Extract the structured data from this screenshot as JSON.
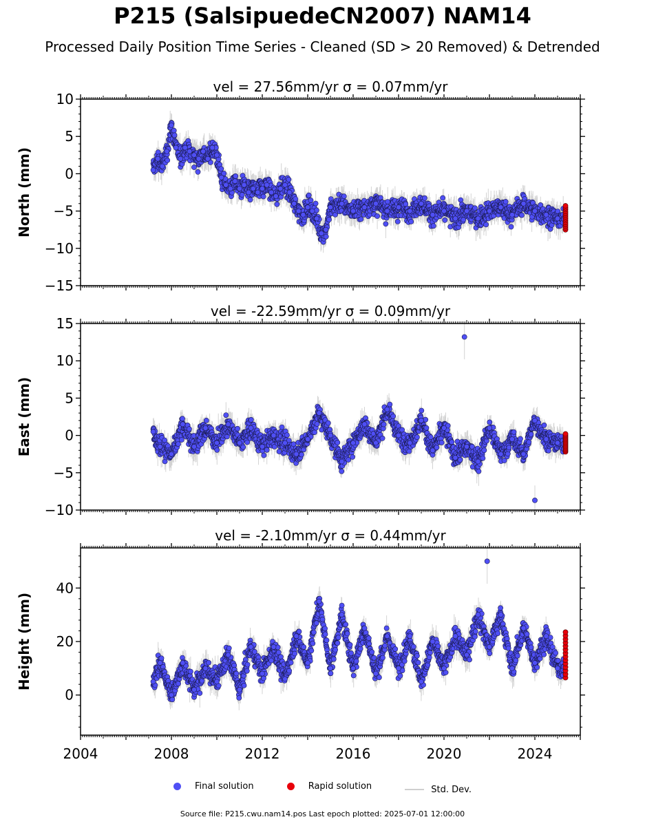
{
  "title": "P215 (SalsipuedeCN2007) NAM14",
  "subtitle": "Processed Daily Position Time Series - Cleaned (SD > 20 Removed) & Detrended",
  "legend": {
    "final": "Final solution",
    "rapid": "Rapid solution",
    "std": "Std. Dev."
  },
  "footer": "Source file: P215.cwu.nam14.pos  Last epoch plotted: 2025-07-01 12:00:00",
  "colors": {
    "final": "#4f4ff5",
    "rapid": "#e8000b",
    "std": "#b0b0b0"
  },
  "chart_data": [
    {
      "type": "scatter",
      "title": "vel = 27.56mm/yr   σ = 0.07mm/yr",
      "ylabel": "North (mm)",
      "xlim": [
        2004,
        2026
      ],
      "ylim": [
        -15,
        10
      ],
      "yticks": [
        -15,
        -10,
        -5,
        0,
        5,
        10
      ],
      "xticks": [
        2004,
        2008,
        2012,
        2016,
        2020,
        2024
      ],
      "series": [
        {
          "name": "Final solution",
          "x": [
            2007.2,
            2007.4,
            2007.6,
            2007.8,
            2008.0,
            2008.2,
            2008.4,
            2008.6,
            2008.8,
            2009.0,
            2009.2,
            2009.4,
            2009.6,
            2009.8,
            2010.0,
            2010.2,
            2010.4,
            2010.6,
            2010.8,
            2011.0,
            2011.2,
            2011.4,
            2011.6,
            2011.8,
            2012.0,
            2012.2,
            2012.4,
            2012.6,
            2012.8,
            2013.0,
            2013.2,
            2013.4,
            2013.6,
            2013.8,
            2014.0,
            2014.2,
            2014.4,
            2014.6,
            2014.8,
            2015.0,
            2015.5,
            2016.0,
            2016.5,
            2017.0,
            2017.5,
            2018.0,
            2018.5,
            2019.0,
            2019.5,
            2020.0,
            2020.5,
            2021.0,
            2021.5,
            2022.0,
            2022.5,
            2023.0,
            2023.5,
            2024.0,
            2024.5,
            2025.0
          ],
          "y": [
            0.5,
            2.0,
            1.0,
            3.0,
            6.5,
            3.5,
            2.0,
            3.5,
            3.0,
            2.5,
            2.0,
            3.0,
            2.0,
            3.5,
            2.5,
            -0.5,
            -1.5,
            -2.0,
            -1.0,
            -2.0,
            -1.5,
            -2.5,
            -2.0,
            -2.5,
            -2.0,
            -1.5,
            -2.5,
            -3.0,
            -2.0,
            -1.5,
            -2.5,
            -4.0,
            -5.0,
            -5.5,
            -4.5,
            -5.0,
            -6.0,
            -8.0,
            -7.5,
            -4.5,
            -4.0,
            -5.0,
            -4.5,
            -4.0,
            -5.0,
            -4.5,
            -5.0,
            -4.0,
            -5.5,
            -5.0,
            -6.0,
            -5.0,
            -6.0,
            -5.0,
            -4.5,
            -5.5,
            -4.0,
            -5.0,
            -5.5,
            -6.0
          ]
        },
        {
          "name": "Rapid solution",
          "x": [
            2025.3,
            2025.35,
            2025.4,
            2025.45,
            2025.5
          ],
          "y": [
            -4.5,
            -5.5,
            -6.5,
            -7.0,
            -7.5
          ]
        }
      ],
      "rapid_range": [
        -7.5,
        -4.3
      ]
    },
    {
      "type": "scatter",
      "title": "vel = -22.59mm/yr   σ = 0.09mm/yr",
      "ylabel": "East (mm)",
      "xlim": [
        2004,
        2026
      ],
      "ylim": [
        -10,
        15
      ],
      "yticks": [
        -10,
        -5,
        0,
        5,
        10,
        15
      ],
      "xticks": [
        2004,
        2008,
        2012,
        2016,
        2020,
        2024
      ],
      "outliers": [
        [
          2020.9,
          13.2
        ],
        [
          2024.0,
          -8.7
        ]
      ],
      "series": [
        {
          "name": "Final solution",
          "x": [
            2007.2,
            2007.5,
            2008.0,
            2008.5,
            2009.0,
            2009.5,
            2010.0,
            2010.5,
            2011.0,
            2011.5,
            2012.0,
            2012.5,
            2013.0,
            2013.5,
            2014.0,
            2014.5,
            2015.0,
            2015.5,
            2016.0,
            2016.5,
            2017.0,
            2017.5,
            2018.0,
            2018.5,
            2019.0,
            2019.5,
            2020.0,
            2020.5,
            2021.0,
            2021.5,
            2022.0,
            2022.5,
            2023.0,
            2023.5,
            2024.0,
            2024.5,
            2025.0
          ],
          "y": [
            0.5,
            -1.5,
            -2.5,
            1.5,
            -1.5,
            1.0,
            -1.0,
            1.5,
            -1.0,
            1.0,
            -1.5,
            0.0,
            -1.0,
            -2.5,
            -0.5,
            3.0,
            0.0,
            -3.5,
            -1.0,
            1.5,
            -1.0,
            3.5,
            0.0,
            -1.0,
            2.0,
            -2.0,
            1.0,
            -3.0,
            -1.5,
            -3.5,
            1.0,
            -2.5,
            -0.5,
            -2.5,
            2.0,
            -0.5,
            -1.0
          ]
        },
        {
          "name": "Rapid solution",
          "x": [
            2025.3,
            2025.35,
            2025.4,
            2025.45,
            2025.5
          ],
          "y": [
            0.0,
            -0.7,
            -1.3,
            -1.8,
            -2.2
          ]
        }
      ],
      "rapid_range": [
        -2.2,
        0.2
      ]
    },
    {
      "type": "scatter",
      "title": "vel = -2.10mm/yr   σ = 0.44mm/yr",
      "ylabel": "Height (mm)",
      "xlim": [
        2004,
        2026
      ],
      "ylim": [
        -15,
        55
      ],
      "yticks": [
        0,
        20,
        40
      ],
      "xticks": [
        2004,
        2008,
        2012,
        2016,
        2020,
        2024
      ],
      "outliers": [
        [
          2021.9,
          50.0
        ]
      ],
      "series": [
        {
          "name": "Final solution",
          "x": [
            2007.2,
            2007.5,
            2008.0,
            2008.5,
            2009.0,
            2009.5,
            2010.0,
            2010.5,
            2011.0,
            2011.5,
            2012.0,
            2012.5,
            2013.0,
            2013.5,
            2014.0,
            2014.5,
            2015.0,
            2015.5,
            2016.0,
            2016.5,
            2017.0,
            2017.5,
            2018.0,
            2018.5,
            2019.0,
            2019.5,
            2020.0,
            2020.5,
            2021.0,
            2021.5,
            2022.0,
            2022.5,
            2023.0,
            2023.5,
            2024.0,
            2024.5,
            2025.0
          ],
          "y": [
            5,
            12,
            0,
            12,
            2,
            10,
            5,
            15,
            2,
            18,
            8,
            18,
            6,
            22,
            12,
            35,
            10,
            30,
            10,
            25,
            8,
            22,
            10,
            22,
            5,
            20,
            10,
            22,
            15,
            30,
            18,
            30,
            10,
            25,
            12,
            22,
            10
          ]
        },
        {
          "name": "Rapid solution",
          "x": [
            2025.3,
            2025.35,
            2025.4,
            2025.45,
            2025.5
          ],
          "y": [
            23,
            19,
            15,
            11,
            7
          ]
        }
      ],
      "rapid_range": [
        6.5,
        23.5
      ]
    }
  ]
}
